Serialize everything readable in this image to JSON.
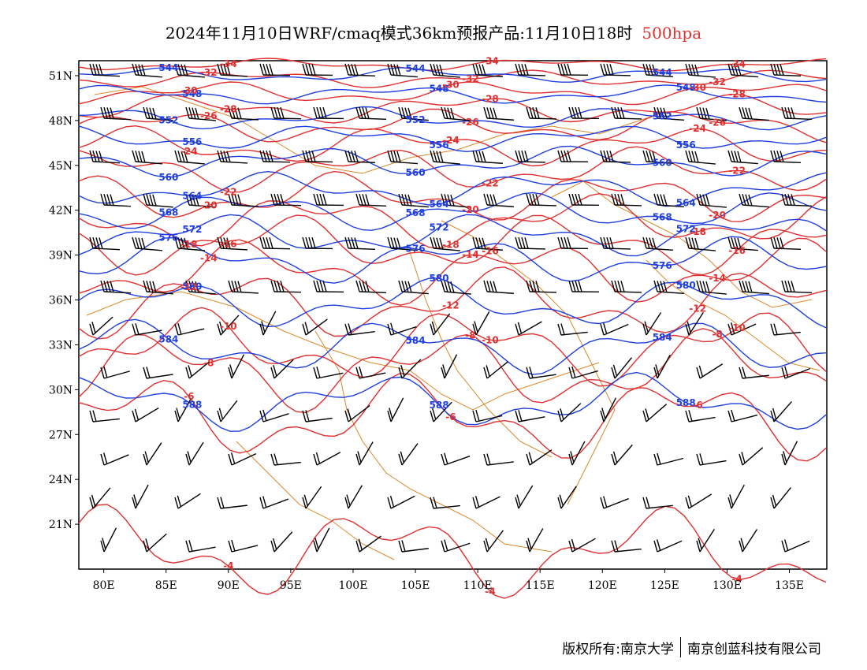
{
  "header": {
    "title": "2024年11月10日WRF/cmaq模式36km预报产品:11月10日18时",
    "level": "500hpa"
  },
  "footer": {
    "copyright_left": "版权所有:南京大学",
    "copyright_right": "南京创蓝科技有限公司"
  },
  "map": {
    "lon_range": [
      78,
      138
    ],
    "lat_range": [
      18,
      52
    ],
    "lon_ticks": [
      "80E",
      "85E",
      "90E",
      "95E",
      "100E",
      "105E",
      "110E",
      "115E",
      "120E",
      "125E",
      "130E",
      "135E"
    ],
    "lat_ticks": [
      "51N",
      "48N",
      "45N",
      "42N",
      "39N",
      "36N",
      "33N",
      "30N",
      "27N",
      "24N",
      "21N"
    ],
    "colors": {
      "height_contour": "#1f3fe0",
      "temperature_contour": "#e03030",
      "boundary": "#d98a2b",
      "wind_barb": "#000000"
    },
    "height_contours": [
      544,
      548,
      552,
      556,
      560,
      564,
      568,
      572,
      576,
      580,
      584,
      588
    ],
    "temperature_contours": [
      -34,
      -32,
      -30,
      -28,
      -26,
      -24,
      -22,
      -20,
      -18,
      -16,
      -14,
      -12,
      -10,
      -8,
      -6,
      -4
    ]
  }
}
